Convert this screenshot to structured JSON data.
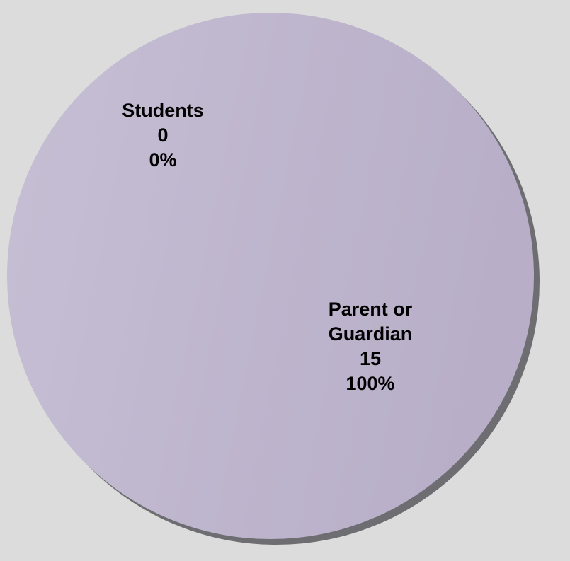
{
  "chart_data": {
    "type": "pie",
    "slices": [
      {
        "label": [
          "Students"
        ],
        "value": 0,
        "percent": "0%"
      },
      {
        "label": [
          "Parent or",
          "Guardian"
        ],
        "value": 15,
        "percent": "100%"
      }
    ],
    "colors": {
      "background": "#dcdcdc",
      "slice_light": "#c6bfd4",
      "slice_dark": "#b8aec8",
      "edge_shadow": "#6e6e72"
    }
  }
}
